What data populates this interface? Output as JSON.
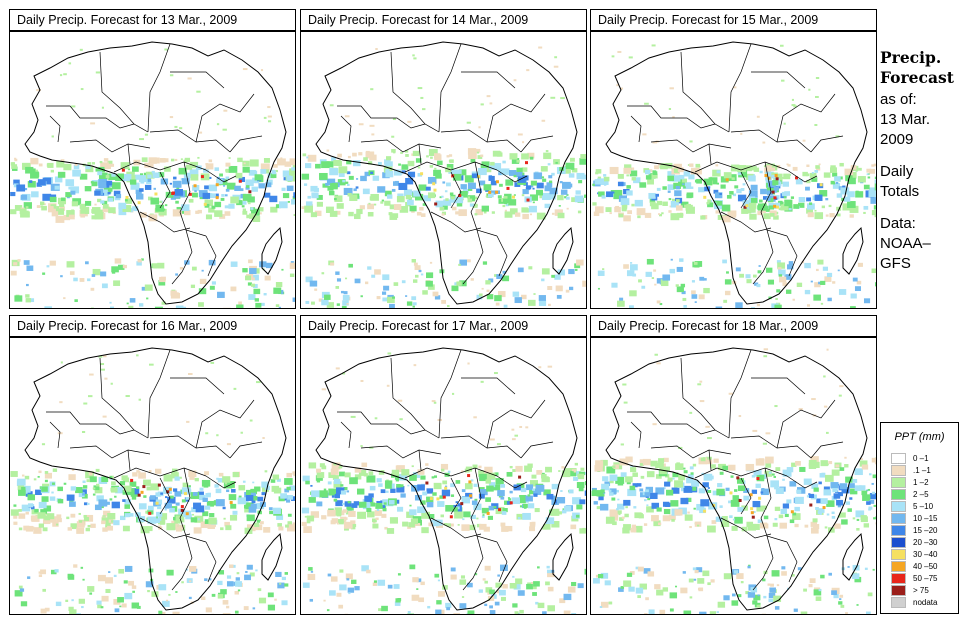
{
  "panels": [
    {
      "title": "Daily Precip. Forecast for  13 Mar., 2009"
    },
    {
      "title": "Daily Precip. Forecast for  14 Mar., 2009"
    },
    {
      "title": "Daily Precip. Forecast for  15 Mar., 2009"
    },
    {
      "title": "Daily Precip. Forecast for  16 Mar., 2009"
    },
    {
      "title": "Daily Precip. Forecast for  17 Mar., 2009"
    },
    {
      "title": "Daily Precip. Forecast for  18 Mar., 2009"
    }
  ],
  "side": {
    "heading1": "Precip.",
    "heading2": "Forecast",
    "asof": "as of:",
    "date1": "13 Mar.",
    "date2": "2009",
    "daily1": "Daily",
    "daily2": "Totals",
    "data1": "Data:",
    "data2": "NOAA–",
    "data3": "GFS"
  },
  "legend": {
    "title": "PPT (mm)",
    "items": [
      {
        "label": "0 –1",
        "color": "#ffffff"
      },
      {
        "label": ".1 –1",
        "color": "#f1dcc0"
      },
      {
        "label": "1 –2",
        "color": "#b4f0a0"
      },
      {
        "label": "2 –5",
        "color": "#6ee37a"
      },
      {
        "label": "5 –10",
        "color": "#a9e3f7"
      },
      {
        "label": "10 –15",
        "color": "#72b8ef"
      },
      {
        "label": "15 –20",
        "color": "#3f86e8"
      },
      {
        "label": "20 –30",
        "color": "#1c4fcf"
      },
      {
        "label": "30 –40",
        "color": "#f6e060"
      },
      {
        "label": "40 –50",
        "color": "#f5a623"
      },
      {
        "label": "50 –75",
        "color": "#e8261b"
      },
      {
        "label": "> 75",
        "color": "#9b1f1a"
      },
      {
        "label": "nodata",
        "color": "#d0d0d0"
      }
    ]
  },
  "colors": {
    "border": "#000000",
    "land": "#ffffff"
  }
}
